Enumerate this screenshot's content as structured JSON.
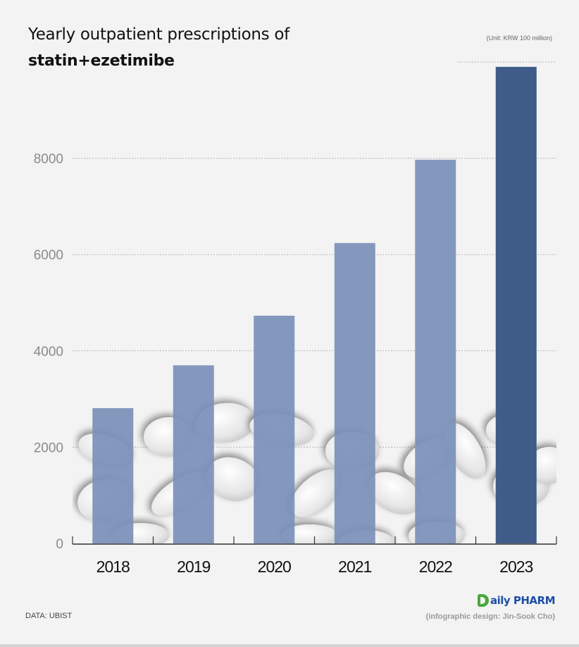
{
  "chart_data": {
    "type": "bar",
    "title": "Yearly outpatient prescriptions of",
    "subtitle": "statin+ezetimibe",
    "unit_note": "(Unit: KRW 100 million)",
    "xlabel": "",
    "ylabel": "",
    "categories": [
      "2018",
      "2019",
      "2020",
      "2021",
      "2022",
      "2023"
    ],
    "values": [
      2810,
      3700,
      4730,
      6240,
      7970,
      9900
    ],
    "yticks": [
      0,
      2000,
      4000,
      6000,
      8000
    ],
    "ylim": [
      0,
      10000
    ],
    "grid": true,
    "highlight_index": 5,
    "colors": {
      "bar": "#7b90b8",
      "highlight_bar": "#3f5b87",
      "grid": "#b5b5b5",
      "axis": "#333333",
      "tick_label": "#8a8a8a",
      "category_label": "#111111"
    }
  },
  "footer": {
    "source": "DATA: UBIST",
    "logo_text": "aily PHARM",
    "credit": "(infographic design: Jin-Sook Cho)"
  }
}
